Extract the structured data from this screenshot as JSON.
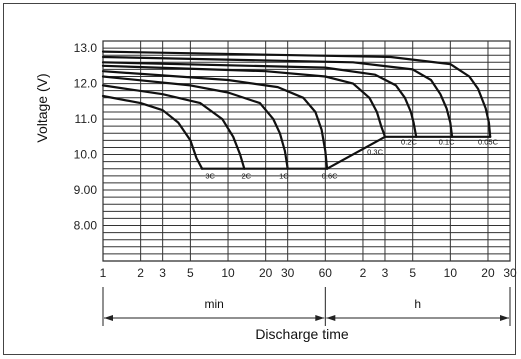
{
  "chart_data": {
    "type": "line",
    "ylabel": "Voltage (V)",
    "xlabel": "Discharge time",
    "xscale": "log",
    "ylim": [
      7.0,
      13.2
    ],
    "y_ticks": [
      {
        "v": 13.0,
        "label": "13.0"
      },
      {
        "v": 12.0,
        "label": "12.0"
      },
      {
        "v": 11.0,
        "label": "11.0"
      },
      {
        "v": 10.0,
        "label": "10.0"
      },
      {
        "v": 9.0,
        "label": "9.00"
      },
      {
        "v": 8.0,
        "label": "8.00"
      }
    ],
    "x_ticks": [
      {
        "min": 1,
        "label": "1"
      },
      {
        "min": 2,
        "label": "2"
      },
      {
        "min": 3,
        "label": "3"
      },
      {
        "min": 5,
        "label": "5"
      },
      {
        "min": 10,
        "label": "10"
      },
      {
        "min": 20,
        "label": "20"
      },
      {
        "min": 30,
        "label": "30"
      },
      {
        "min": 60,
        "label": "60"
      },
      {
        "min": 120,
        "label": "2"
      },
      {
        "min": 180,
        "label": "3"
      },
      {
        "min": 300,
        "label": "5"
      },
      {
        "min": 600,
        "label": "10"
      },
      {
        "min": 1200,
        "label": "20"
      },
      {
        "min": 1800,
        "label": "30"
      }
    ],
    "ranges": [
      {
        "label": "min",
        "from": 1,
        "to": 60
      },
      {
        "label": "h",
        "from": 60,
        "to": 1800
      }
    ],
    "grid": true,
    "series": [
      {
        "name": "3C",
        "label_at": [
          7.2,
          9.32
        ],
        "points": [
          [
            1,
            11.65
          ],
          [
            2,
            11.45
          ],
          [
            3,
            11.25
          ],
          [
            4,
            10.9
          ],
          [
            5,
            10.4
          ],
          [
            5.6,
            9.9
          ],
          [
            6.2,
            9.6
          ]
        ]
      },
      {
        "name": "2C",
        "label_at": [
          14,
          9.32
        ],
        "points": [
          [
            1,
            11.95
          ],
          [
            3,
            11.7
          ],
          [
            6,
            11.45
          ],
          [
            9,
            11.0
          ],
          [
            11,
            10.5
          ],
          [
            12.5,
            10.0
          ],
          [
            13.5,
            9.6
          ]
        ]
      },
      {
        "name": "1C",
        "label_at": [
          28,
          9.32
        ],
        "points": [
          [
            1,
            12.2
          ],
          [
            5,
            11.95
          ],
          [
            10,
            11.75
          ],
          [
            18,
            11.45
          ],
          [
            23,
            11.0
          ],
          [
            26,
            10.6
          ],
          [
            28.5,
            10.1
          ],
          [
            30,
            9.6
          ]
        ]
      },
      {
        "name": "0.6C",
        "label_at": [
          65,
          9.32
        ],
        "points": [
          [
            1,
            12.35
          ],
          [
            10,
            12.1
          ],
          [
            25,
            11.9
          ],
          [
            40,
            11.6
          ],
          [
            50,
            11.2
          ],
          [
            56,
            10.7
          ],
          [
            60,
            10.1
          ],
          [
            62,
            9.6
          ]
        ]
      },
      {
        "name": "0.3C",
        "label_at": [
          150,
          10.0
        ],
        "points": [
          [
            1,
            12.5
          ],
          [
            20,
            12.35
          ],
          [
            60,
            12.2
          ],
          [
            100,
            12.0
          ],
          [
            135,
            11.6
          ],
          [
            155,
            11.2
          ],
          [
            168,
            10.8
          ],
          [
            180,
            10.5
          ]
        ]
      },
      {
        "name": "0.2C",
        "label_at": [
          280,
          10.28
        ],
        "points": [
          [
            1,
            12.6
          ],
          [
            60,
            12.45
          ],
          [
            150,
            12.25
          ],
          [
            220,
            11.95
          ],
          [
            260,
            11.6
          ],
          [
            290,
            11.2
          ],
          [
            305,
            10.9
          ],
          [
            320,
            10.5
          ]
        ]
      },
      {
        "name": "0.1C",
        "label_at": [
          560,
          10.28
        ],
        "points": [
          [
            1,
            12.75
          ],
          [
            100,
            12.6
          ],
          [
            300,
            12.4
          ],
          [
            420,
            12.1
          ],
          [
            500,
            11.7
          ],
          [
            560,
            11.3
          ],
          [
            600,
            10.9
          ],
          [
            620,
            10.5
          ]
        ]
      },
      {
        "name": "0.05C",
        "label_at": [
          1200,
          10.28
        ],
        "points": [
          [
            1,
            12.9
          ],
          [
            200,
            12.75
          ],
          [
            600,
            12.55
          ],
          [
            850,
            12.2
          ],
          [
            1000,
            11.85
          ],
          [
            1150,
            11.3
          ],
          [
            1220,
            10.9
          ],
          [
            1250,
            10.5
          ]
        ]
      }
    ],
    "endpoint_lines": [
      {
        "points": [
          [
            6.2,
            9.6
          ],
          [
            62,
            9.6
          ]
        ]
      },
      {
        "points": [
          [
            62,
            9.6
          ],
          [
            180,
            10.5
          ]
        ]
      },
      {
        "points": [
          [
            180,
            10.5
          ],
          [
            1250,
            10.5
          ]
        ]
      }
    ]
  }
}
